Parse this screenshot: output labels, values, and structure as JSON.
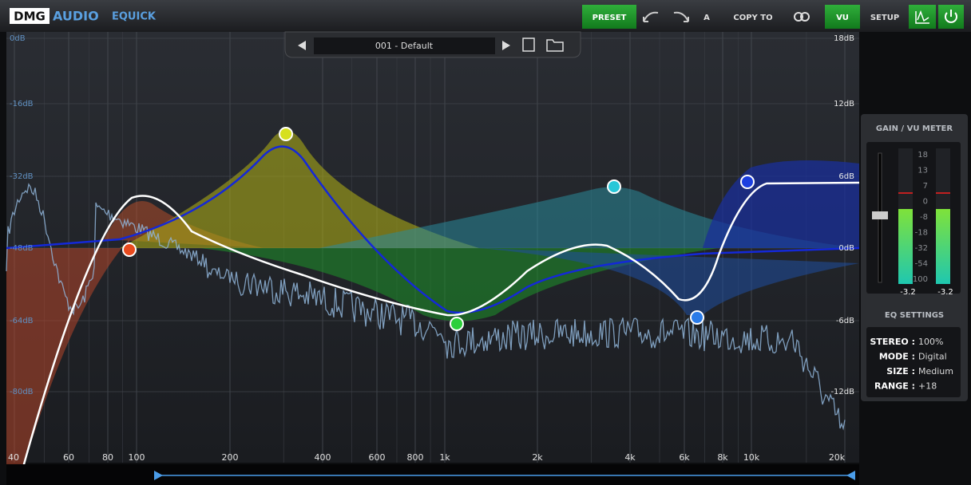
{
  "header": {
    "brand_dmg": "DMG",
    "brand_audio": "AUDIO",
    "product": "EQUICK",
    "buttons": [
      "PRESET",
      "A",
      "COPY TO",
      "VU",
      "SETUP"
    ]
  },
  "preset": {
    "name": "001 - Default"
  },
  "graph": {
    "left_labels": [
      "0dB",
      "-16dB",
      "-32dB",
      "-48dB",
      "-64dB",
      "-80dB"
    ],
    "right_labels": [
      "18dB",
      "12dB",
      "6dB",
      "0dB",
      "-6dB",
      "-12dB"
    ],
    "freq_labels": [
      "40",
      "60",
      "80",
      "100",
      "200",
      "400",
      "600",
      "800",
      "1k",
      "2k",
      "4k",
      "6k",
      "8k",
      "10k",
      "20k"
    ]
  },
  "meter": {
    "title": "GAIN / VU METER",
    "scale": [
      "18",
      "13",
      "7",
      "0",
      "-8",
      "-18",
      "-32",
      "-54",
      "-100"
    ],
    "readouts": [
      "-3.2",
      "-3.2"
    ]
  },
  "eq_settings": {
    "title": "EQ SETTINGS",
    "rows": [
      {
        "label": "STEREO :",
        "value": "100%"
      },
      {
        "label": "MODE :",
        "value": "Digital"
      },
      {
        "label": "SIZE :",
        "value": "Medium"
      },
      {
        "label": "RANGE :",
        "value": "+18"
      }
    ]
  }
}
